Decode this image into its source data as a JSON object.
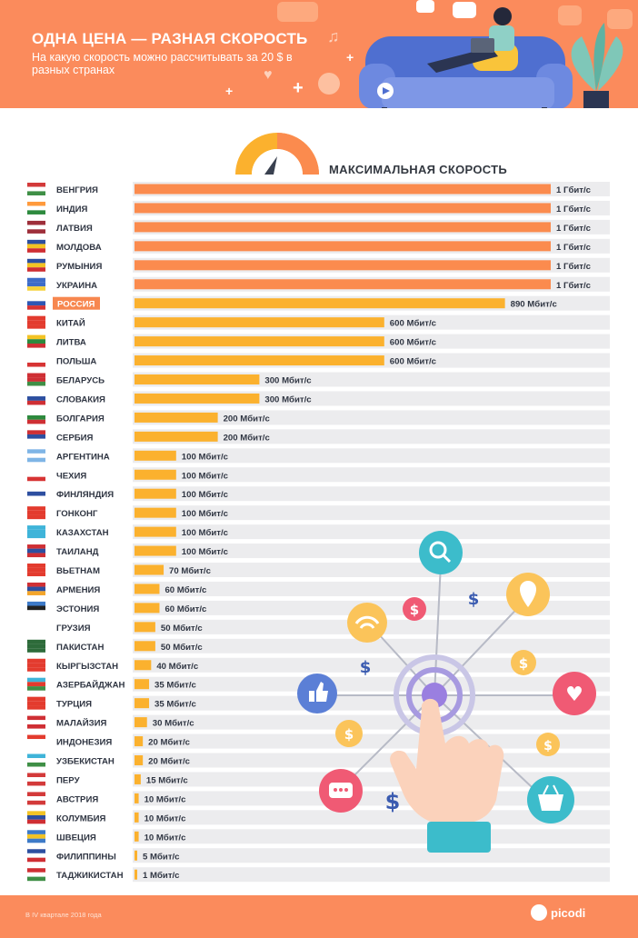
{
  "header": {
    "title": "ОДНА ЦЕНА — РАЗНАЯ СКОРОСТЬ",
    "subtitle": "На какую скорость можно рассчитывать за 20 $ в разных странах"
  },
  "footer": {
    "note": "В IV квартале 2018 года",
    "brand": "picodi"
  },
  "colors": {
    "header_bg": "#fb8b5c",
    "bar_orange": "#fb8b4e",
    "bar_yellow": "#fbb12e",
    "track": "#ececee",
    "highlight": "#f7874f"
  },
  "chart_data": {
    "type": "bar",
    "orientation": "horizontal",
    "title": "МАКСИМАЛЬНАЯ СКОРОСТЬ",
    "unit": "Мбит/с",
    "xlim": [
      0,
      1150
    ],
    "highlight_category": "РОССИЯ",
    "categories": [
      "ВЕНГРИЯ",
      "ИНДИЯ",
      "ЛАТВИЯ",
      "МОЛДОВА",
      "РУМЫНИЯ",
      "УКРАИНА",
      "РОССИЯ",
      "КИТАЙ",
      "ЛИТВА",
      "ПОЛЬША",
      "БЕЛАРУСЬ",
      "СЛОВАКИЯ",
      "БОЛГАРИЯ",
      "СЕРБИЯ",
      "АРГЕНТИНА",
      "ЧЕХИЯ",
      "ФИНЛЯНДИЯ",
      "ГОНКОНГ",
      "КАЗАХСТАН",
      "ТАИЛАНД",
      "ВЬЕТНАМ",
      "АРМЕНИЯ",
      "ЭСТОНИЯ",
      "ГРУЗИЯ",
      "ПАКИСТАН",
      "КЫРГЫЗСТАН",
      "АЗЕРБАЙДЖАН",
      "ТУРЦИЯ",
      "МАЛАЙЗИЯ",
      "ИНДОНЕЗИЯ",
      "УЗБЕКИСТАН",
      "ПЕРУ",
      "АВСТРИЯ",
      "КОЛУМБИЯ",
      "ШВЕЦИЯ",
      "ФИЛИППИНЫ",
      "ТАДЖИКИСТАН"
    ],
    "values": [
      1000,
      1000,
      1000,
      1000,
      1000,
      1000,
      890,
      600,
      600,
      600,
      300,
      300,
      200,
      200,
      100,
      100,
      100,
      100,
      100,
      100,
      70,
      60,
      60,
      50,
      50,
      40,
      35,
      35,
      30,
      20,
      20,
      15,
      10,
      10,
      10,
      5,
      1
    ],
    "value_labels": [
      "1 Гбит/с",
      "1 Гбит/с",
      "1 Гбит/с",
      "1 Гбит/с",
      "1 Гбит/с",
      "1 Гбит/с",
      "890 Мбит/с",
      "600 Мбит/с",
      "600 Мбит/с",
      "600 Мбит/с",
      "300 Мбит/с",
      "300 Мбит/с",
      "200 Мбит/с",
      "200 Мбит/с",
      "100 Мбит/с",
      "100 Мбит/с",
      "100 Мбит/с",
      "100 Мбит/с",
      "100 Мбит/с",
      "100 Мбит/с",
      "70 Мбит/с",
      "60 Мбит/с",
      "60 Мбит/с",
      "50 Мбит/с",
      "50 Мбит/с",
      "40 Мбит/с",
      "35 Мбит/с",
      "35 Мбит/с",
      "30 Мбит/с",
      "20 Мбит/с",
      "20 Мбит/с",
      "15 Мбит/с",
      "10 Мбит/с",
      "10 Мбит/с",
      "10 Мбит/с",
      "5 Мбит/с",
      "1 Мбит/с"
    ],
    "flags": [
      [
        "#d33a3a",
        "#ffffff",
        "#3f8f46"
      ],
      [
        "#ff9a3c",
        "#ffffff",
        "#2d8a3e"
      ],
      [
        "#9e2f3b",
        "#ffffff",
        "#9e2f3b"
      ],
      [
        "#2d4fa0",
        "#f3c324",
        "#cf2f34"
      ],
      [
        "#2d4fa0",
        "#f3c324",
        "#cf2f34"
      ],
      [
        "#3d6cc8",
        "#3d6cc8",
        "#f6d23a"
      ],
      [
        "#ffffff",
        "#2e57b5",
        "#d73434"
      ],
      [
        "#e33b2e",
        "#e33b2e",
        "#e33b2e"
      ],
      [
        "#f3c324",
        "#2d8a3e",
        "#cf2f34"
      ],
      [
        "#ffffff",
        "#ffffff",
        "#d73434"
      ],
      [
        "#cf2f34",
        "#cf2f34",
        "#3f8f46"
      ],
      [
        "#ffffff",
        "#2d4fa0",
        "#cf2f34"
      ],
      [
        "#ffffff",
        "#2d8a3e",
        "#cf2f34"
      ],
      [
        "#cf2f34",
        "#2d4fa0",
        "#ffffff"
      ],
      [
        "#7fb5e6",
        "#ffffff",
        "#7fb5e6"
      ],
      [
        "#ffffff",
        "#ffffff",
        "#d73434"
      ],
      [
        "#ffffff",
        "#2d4fa0",
        "#ffffff"
      ],
      [
        "#e33b2e",
        "#e33b2e",
        "#e33b2e"
      ],
      [
        "#3fb4d9",
        "#3fb4d9",
        "#3fb4d9"
      ],
      [
        "#cf2f34",
        "#2d4fa0",
        "#cf2f34"
      ],
      [
        "#e33b2e",
        "#e33b2e",
        "#e33b2e"
      ],
      [
        "#cf2f34",
        "#2d4fa0",
        "#f3a52b"
      ],
      [
        "#3d7ac8",
        "#222222",
        "#ffffff"
      ],
      [
        "#ffffff",
        "#ffffff",
        "#ffffff"
      ],
      [
        "#2d6b3a",
        "#2d6b3a",
        "#2d6b3a"
      ],
      [
        "#e33b2e",
        "#e33b2e",
        "#e33b2e"
      ],
      [
        "#3fb4d9",
        "#e33b2e",
        "#3f8f46"
      ],
      [
        "#e33b2e",
        "#e33b2e",
        "#e33b2e"
      ],
      [
        "#cf2f34",
        "#ffffff",
        "#cf2f34"
      ],
      [
        "#e33b2e",
        "#ffffff",
        "#ffffff"
      ],
      [
        "#3fb4d9",
        "#ffffff",
        "#3f8f46"
      ],
      [
        "#d33a3a",
        "#ffffff",
        "#d33a3a"
      ],
      [
        "#d33a3a",
        "#ffffff",
        "#d33a3a"
      ],
      [
        "#f3c324",
        "#2d4fa0",
        "#cf2f34"
      ],
      [
        "#3d7ac8",
        "#f3c324",
        "#3d7ac8"
      ],
      [
        "#2d4fa0",
        "#ffffff",
        "#cf2f34"
      ],
      [
        "#cf2f34",
        "#ffffff",
        "#3f8f46"
      ]
    ]
  }
}
